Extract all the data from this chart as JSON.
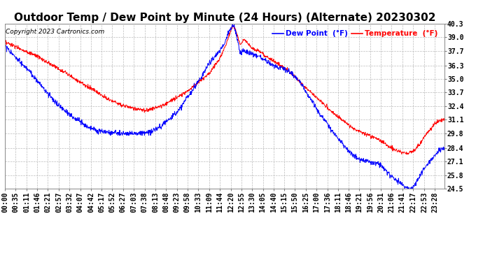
{
  "title": "Outdoor Temp / Dew Point by Minute (24 Hours) (Alternate) 20230302",
  "copyright": "Copyright 2023 Cartronics.com",
  "legend_dew": "Dew Point  (°F)",
  "legend_temp": "Temperature  (°F)",
  "color_dew": "#0000ff",
  "color_temp": "#ff0000",
  "background_color": "#ffffff",
  "grid_color": "#bbbbbb",
  "yticks": [
    24.5,
    25.8,
    27.1,
    28.4,
    29.8,
    31.1,
    32.4,
    33.7,
    35.0,
    36.3,
    37.7,
    39.0,
    40.3
  ],
  "ylim": [
    24.5,
    40.3
  ],
  "title_fontsize": 11,
  "tick_fontsize": 7,
  "xtick_labels": [
    "00:00",
    "00:35",
    "01:11",
    "01:46",
    "02:21",
    "02:57",
    "03:32",
    "04:07",
    "04:42",
    "05:17",
    "05:52",
    "06:27",
    "07:03",
    "07:38",
    "08:13",
    "08:48",
    "09:23",
    "09:58",
    "10:33",
    "11:09",
    "11:44",
    "12:20",
    "12:55",
    "13:30",
    "14:05",
    "14:40",
    "15:15",
    "15:50",
    "16:25",
    "17:00",
    "17:36",
    "18:11",
    "18:46",
    "19:21",
    "19:56",
    "20:31",
    "21:06",
    "21:41",
    "22:17",
    "22:53",
    "23:28"
  ],
  "temp_keypoints": [
    [
      0.0,
      38.5
    ],
    [
      0.02,
      38.2
    ],
    [
      0.04,
      37.8
    ],
    [
      0.06,
      37.4
    ],
    [
      0.08,
      37.0
    ],
    [
      0.1,
      36.5
    ],
    [
      0.13,
      35.8
    ],
    [
      0.16,
      35.0
    ],
    [
      0.2,
      34.0
    ],
    [
      0.23,
      33.2
    ],
    [
      0.26,
      32.6
    ],
    [
      0.29,
      32.2
    ],
    [
      0.32,
      32.0
    ],
    [
      0.34,
      32.2
    ],
    [
      0.36,
      32.5
    ],
    [
      0.39,
      33.2
    ],
    [
      0.42,
      34.0
    ],
    [
      0.45,
      35.0
    ],
    [
      0.47,
      35.8
    ],
    [
      0.49,
      37.0
    ],
    [
      0.505,
      38.5
    ],
    [
      0.515,
      39.8
    ],
    [
      0.52,
      40.1
    ],
    [
      0.527,
      39.5
    ],
    [
      0.535,
      38.3
    ],
    [
      0.545,
      38.8
    ],
    [
      0.552,
      38.5
    ],
    [
      0.56,
      38.0
    ],
    [
      0.57,
      37.8
    ],
    [
      0.58,
      37.6
    ],
    [
      0.59,
      37.3
    ],
    [
      0.6,
      37.0
    ],
    [
      0.61,
      36.8
    ],
    [
      0.62,
      36.5
    ],
    [
      0.63,
      36.2
    ],
    [
      0.645,
      35.8
    ],
    [
      0.66,
      35.2
    ],
    [
      0.675,
      34.5
    ],
    [
      0.695,
      33.8
    ],
    [
      0.715,
      33.0
    ],
    [
      0.735,
      32.2
    ],
    [
      0.755,
      31.5
    ],
    [
      0.775,
      30.8
    ],
    [
      0.795,
      30.2
    ],
    [
      0.815,
      29.8
    ],
    [
      0.835,
      29.5
    ],
    [
      0.85,
      29.2
    ],
    [
      0.865,
      28.8
    ],
    [
      0.875,
      28.5
    ],
    [
      0.885,
      28.3
    ],
    [
      0.895,
      28.1
    ],
    [
      0.905,
      28.0
    ],
    [
      0.915,
      27.9
    ],
    [
      0.925,
      28.0
    ],
    [
      0.935,
      28.3
    ],
    [
      0.945,
      28.8
    ],
    [
      0.955,
      29.5
    ],
    [
      0.965,
      30.0
    ],
    [
      0.975,
      30.5
    ],
    [
      0.985,
      31.0
    ],
    [
      1.0,
      31.1
    ]
  ],
  "dew_keypoints": [
    [
      0.0,
      38.2
    ],
    [
      0.015,
      37.5
    ],
    [
      0.03,
      36.8
    ],
    [
      0.05,
      36.0
    ],
    [
      0.07,
      35.0
    ],
    [
      0.09,
      34.0
    ],
    [
      0.11,
      33.0
    ],
    [
      0.135,
      32.0
    ],
    [
      0.16,
      31.2
    ],
    [
      0.185,
      30.5
    ],
    [
      0.21,
      30.0
    ],
    [
      0.24,
      29.9
    ],
    [
      0.27,
      29.8
    ],
    [
      0.295,
      29.8
    ],
    [
      0.31,
      29.8
    ],
    [
      0.33,
      29.9
    ],
    [
      0.35,
      30.3
    ],
    [
      0.37,
      31.0
    ],
    [
      0.395,
      32.0
    ],
    [
      0.42,
      33.5
    ],
    [
      0.445,
      35.0
    ],
    [
      0.465,
      36.5
    ],
    [
      0.485,
      37.5
    ],
    [
      0.5,
      38.5
    ],
    [
      0.51,
      39.5
    ],
    [
      0.518,
      40.2
    ],
    [
      0.522,
      40.0
    ],
    [
      0.528,
      39.0
    ],
    [
      0.535,
      37.5
    ],
    [
      0.542,
      37.7
    ],
    [
      0.55,
      37.6
    ],
    [
      0.558,
      37.5
    ],
    [
      0.565,
      37.4
    ],
    [
      0.575,
      37.2
    ],
    [
      0.585,
      37.0
    ],
    [
      0.595,
      36.7
    ],
    [
      0.605,
      36.4
    ],
    [
      0.615,
      36.2
    ],
    [
      0.625,
      36.1
    ],
    [
      0.635,
      36.0
    ],
    [
      0.645,
      35.8
    ],
    [
      0.658,
      35.3
    ],
    [
      0.67,
      34.8
    ],
    [
      0.685,
      33.8
    ],
    [
      0.7,
      32.8
    ],
    [
      0.72,
      31.5
    ],
    [
      0.74,
      30.3
    ],
    [
      0.76,
      29.2
    ],
    [
      0.78,
      28.2
    ],
    [
      0.8,
      27.5
    ],
    [
      0.815,
      27.2
    ],
    [
      0.825,
      27.1
    ],
    [
      0.84,
      27.0
    ],
    [
      0.853,
      26.8
    ],
    [
      0.862,
      26.5
    ],
    [
      0.872,
      26.0
    ],
    [
      0.88,
      25.7
    ],
    [
      0.888,
      25.4
    ],
    [
      0.895,
      25.2
    ],
    [
      0.9,
      25.0
    ],
    [
      0.908,
      24.8
    ],
    [
      0.913,
      24.6
    ],
    [
      0.918,
      24.5
    ],
    [
      0.923,
      24.5
    ],
    [
      0.928,
      24.6
    ],
    [
      0.935,
      25.0
    ],
    [
      0.945,
      25.8
    ],
    [
      0.955,
      26.5
    ],
    [
      0.965,
      27.0
    ],
    [
      0.975,
      27.5
    ],
    [
      0.985,
      28.0
    ],
    [
      0.993,
      28.3
    ],
    [
      1.0,
      28.4
    ]
  ]
}
